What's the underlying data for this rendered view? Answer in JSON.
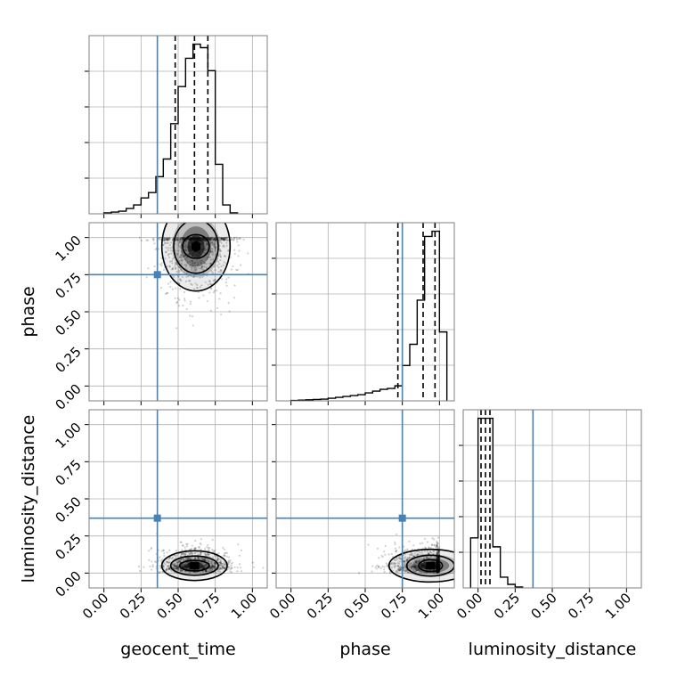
{
  "chart_data": {
    "type": "corner",
    "parameters": [
      "geocent_time",
      "phase",
      "luminosity_distance"
    ],
    "axis_range": [
      -0.1,
      1.1
    ],
    "ticks": [
      0.0,
      0.25,
      0.5,
      0.75,
      1.0
    ],
    "tick_labels": [
      "0.00",
      "0.25",
      "0.50",
      "0.75",
      "1.00"
    ],
    "grid": true,
    "colors": {
      "truth": "#4682b4",
      "histogram": "#000000",
      "grid": "#b0b0b0",
      "frame": "#808080"
    },
    "truth_values": {
      "geocent_time": 0.36,
      "phase": 0.75,
      "luminosity_distance": 0.37
    },
    "marginals": [
      {
        "parameter": "geocent_time",
        "bin_edges": [
          0.0,
          0.05,
          0.1,
          0.15,
          0.2,
          0.25,
          0.3,
          0.35,
          0.4,
          0.45,
          0.5,
          0.55,
          0.6,
          0.65,
          0.7,
          0.75,
          0.8,
          0.85,
          0.9
        ],
        "counts": [
          0.005,
          0.01,
          0.015,
          0.03,
          0.05,
          0.09,
          0.12,
          0.21,
          0.31,
          0.51,
          0.72,
          0.88,
          0.96,
          0.94,
          0.81,
          0.28,
          0.05,
          0.005
        ],
        "quantiles": [
          0.48,
          0.61,
          0.7
        ]
      },
      {
        "parameter": "phase",
        "bin_edges": [
          0.0,
          0.05,
          0.1,
          0.15,
          0.2,
          0.25,
          0.3,
          0.35,
          0.4,
          0.45,
          0.5,
          0.55,
          0.6,
          0.65,
          0.7,
          0.75,
          0.8,
          0.85,
          0.9,
          0.95,
          1.0,
          1.05
        ],
        "counts": [
          0.002,
          0.004,
          0.006,
          0.008,
          0.01,
          0.015,
          0.02,
          0.025,
          0.03,
          0.035,
          0.045,
          0.055,
          0.065,
          0.07,
          0.085,
          0.2,
          0.32,
          0.57,
          0.93,
          0.96,
          0.39
        ],
        "quantiles": [
          0.72,
          0.89,
          0.97
        ]
      },
      {
        "parameter": "luminosity_distance",
        "bin_edges": [
          -0.05,
          0.0,
          0.05,
          0.1,
          0.15,
          0.2,
          0.25,
          0.3
        ],
        "counts": [
          0.28,
          0.95,
          0.95,
          0.23,
          0.06,
          0.02,
          0.005
        ],
        "quantiles": [
          0.02,
          0.05,
          0.08
        ]
      }
    ],
    "joint_panels": [
      {
        "x": "geocent_time",
        "y": "phase",
        "mode": [
          0.62,
          0.94
        ],
        "contour_radii": [
          [
            0.04,
            0.03
          ],
          [
            0.09,
            0.08
          ],
          [
            0.15,
            0.18
          ],
          [
            0.23,
            0.3
          ]
        ],
        "density_peak": "#000000"
      },
      {
        "x": "geocent_time",
        "y": "luminosity_distance",
        "mode": [
          0.61,
          0.05
        ],
        "contour_radii": [
          [
            0.04,
            0.015
          ],
          [
            0.1,
            0.035
          ],
          [
            0.16,
            0.065
          ],
          [
            0.22,
            0.1
          ]
        ],
        "density_peak": "#000000"
      },
      {
        "x": "phase",
        "y": "luminosity_distance",
        "mode": [
          0.94,
          0.05
        ],
        "contour_radii": [
          [
            0.03,
            0.015
          ],
          [
            0.08,
            0.04
          ],
          [
            0.16,
            0.07
          ],
          [
            0.28,
            0.11
          ]
        ],
        "density_peak": "#000000"
      }
    ]
  }
}
